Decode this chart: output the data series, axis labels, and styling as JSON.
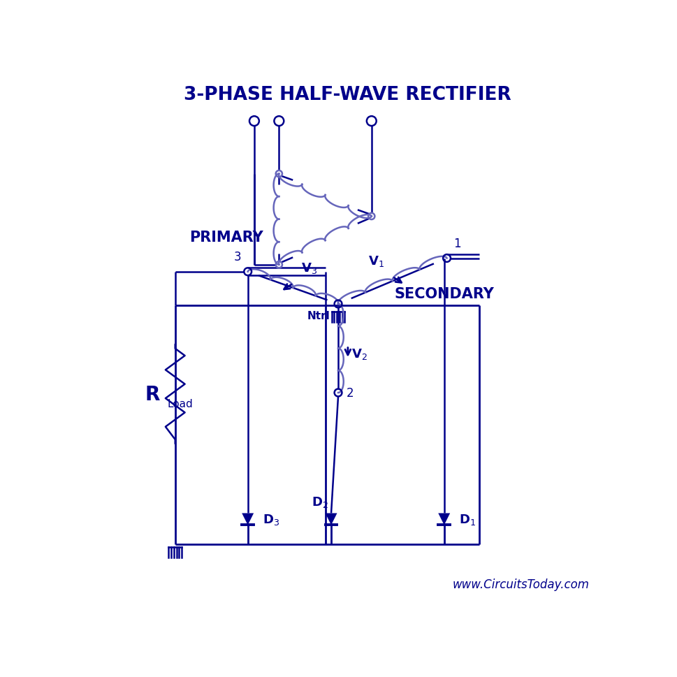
{
  "title": "3-PHASE HALF-WAVE RECTIFIER",
  "line_color": "#00008B",
  "bg_color": "#FFFFFF",
  "website": "www.CircuitsToday.com",
  "primary_label": "PRIMARY",
  "secondary_label": "SECONDARY",
  "coil_color": "#6666BB"
}
